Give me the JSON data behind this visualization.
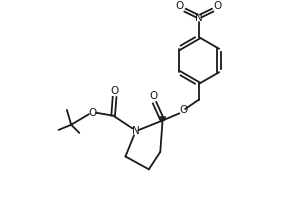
{
  "bg_color": "#ffffff",
  "line_color": "#1a1a1a",
  "line_width": 1.3,
  "font_size": 7.0,
  "fig_width": 2.92,
  "fig_height": 2.14,
  "dpi": 100,
  "xlim": [
    0,
    10
  ],
  "ylim": [
    0,
    7.3
  ]
}
